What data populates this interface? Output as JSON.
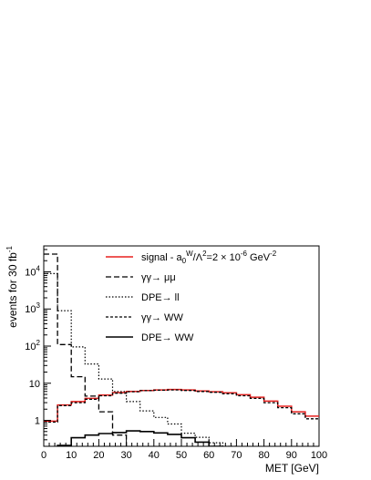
{
  "chart_data": {
    "type": "line",
    "title": "",
    "xlabel": "MET [GeV]",
    "ylabel": "events for 30 fb",
    "ylabel_superscript": "-1",
    "xlim": [
      0,
      100
    ],
    "ylim": [
      0.2,
      50000
    ],
    "yscale": "log",
    "grid": false,
    "legend_position": "top-right",
    "x_ticks": [
      0,
      10,
      20,
      30,
      40,
      50,
      60,
      70,
      80,
      90,
      100
    ],
    "y_ticks": [
      {
        "value": 1,
        "base": "1",
        "exp": ""
      },
      {
        "value": 10,
        "base": "10",
        "exp": ""
      },
      {
        "value": 100,
        "base": "10",
        "exp": "2"
      },
      {
        "value": 1000,
        "base": "10",
        "exp": "3"
      },
      {
        "value": 10000,
        "base": "10",
        "exp": "4"
      }
    ],
    "bin_edges": [
      0,
      5,
      10,
      15,
      20,
      25,
      30,
      35,
      40,
      45,
      50,
      55,
      60,
      65,
      70,
      75,
      80,
      85,
      90,
      95,
      100
    ],
    "series": [
      {
        "name": "signal - a_0^W/Λ² = 2 × 10⁻⁶ GeV⁻²",
        "legend_parts": {
          "pre": "signal - a",
          "sub": "0",
          "sup": "W",
          "mid": "/Λ",
          "sup2": "2",
          "post": "=2 × 10",
          "sup3": "-6",
          "tail": " GeV",
          "sup4": "-2"
        },
        "color": "#e8211f",
        "dash": "solid",
        "width": 1.5,
        "values": [
          0.95,
          2.6,
          3.2,
          3.9,
          4.8,
          5.6,
          6.0,
          6.4,
          6.6,
          6.8,
          6.6,
          6.2,
          5.9,
          5.5,
          4.9,
          4.2,
          3.3,
          2.4,
          1.7,
          1.3
        ]
      },
      {
        "name": "γγ→ μμ",
        "color": "#000000",
        "dash": "6,3",
        "width": 1.3,
        "values": [
          30000,
          110,
          15,
          4.5,
          1.7,
          0.4,
          0.15,
          0.15,
          0.15,
          0.15,
          0.15,
          0.15,
          0.15,
          0.15,
          0.15,
          0.15,
          0.15,
          0.15,
          0.15,
          0.15
        ]
      },
      {
        "name": "DPE→ ll",
        "color": "#000000",
        "dash": "1.5,2",
        "width": 1.2,
        "values": [
          9000,
          900,
          95,
          33,
          13,
          6.0,
          3.2,
          1.8,
          1.2,
          0.8,
          0.45,
          0.35,
          0.25,
          0.2,
          0.15,
          0.15,
          0.15,
          0.15,
          0.15,
          0.15
        ]
      },
      {
        "name": "γγ→ WW",
        "color": "#000000",
        "dash": "3,2",
        "width": 1.3,
        "values": [
          0.9,
          2.5,
          3.0,
          3.7,
          4.6,
          5.4,
          5.9,
          6.3,
          6.5,
          6.6,
          6.4,
          6.0,
          5.7,
          5.2,
          4.6,
          3.9,
          3.0,
          2.2,
          1.5,
          1.1
        ]
      },
      {
        "name": "DPE→ WW",
        "color": "#000000",
        "dash": "solid",
        "width": 1.6,
        "values": [
          0.18,
          0.21,
          0.34,
          0.4,
          0.44,
          0.47,
          0.52,
          0.5,
          0.46,
          0.42,
          0.34,
          0.26,
          0.2,
          0.17,
          0.15,
          0.15,
          0.15,
          0.15,
          0.15,
          0.15
        ]
      }
    ]
  }
}
